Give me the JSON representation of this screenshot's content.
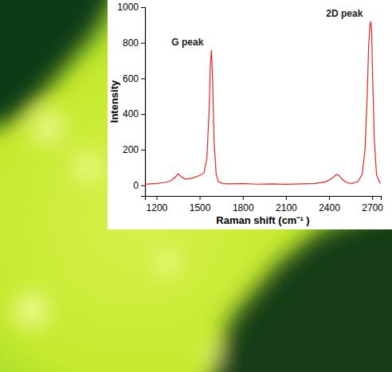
{
  "chart_data": {
    "type": "line",
    "x_label": "Raman shift (cm⁻¹ )",
    "y_label": "Intensity",
    "annotations": [
      {
        "text": "G peak",
        "x": 1582,
        "y": 760
      },
      {
        "text": "2D peak",
        "x": 2690,
        "y": 920
      }
    ],
    "color": "#e8261f",
    "x": [
      1120,
      1150,
      1200,
      1250,
      1300,
      1330,
      1350,
      1370,
      1400,
      1450,
      1500,
      1530,
      1550,
      1565,
      1575,
      1582,
      1590,
      1600,
      1615,
      1630,
      1660,
      1700,
      1800,
      1900,
      2000,
      2100,
      2200,
      2300,
      2380,
      2420,
      2450,
      2470,
      2490,
      2520,
      2560,
      2600,
      2630,
      2650,
      2665,
      2675,
      2685,
      2690,
      2695,
      2705,
      2715,
      2730,
      2750,
      2760
    ],
    "values": [
      5,
      8,
      10,
      15,
      25,
      45,
      65,
      50,
      35,
      40,
      55,
      70,
      150,
      400,
      680,
      760,
      600,
      250,
      60,
      20,
      10,
      8,
      10,
      6,
      8,
      5,
      8,
      10,
      20,
      40,
      60,
      55,
      35,
      15,
      10,
      20,
      60,
      200,
      500,
      780,
      900,
      920,
      880,
      550,
      250,
      60,
      20,
      10
    ],
    "xlim": [
      1120,
      2760
    ],
    "xticks": [
      1200,
      1500,
      1800,
      2100,
      2400,
      2700
    ],
    "ylim": [
      -60,
      1000
    ],
    "yticks": [
      0,
      200,
      400,
      600,
      800,
      1000
    ],
    "grid": false
  }
}
